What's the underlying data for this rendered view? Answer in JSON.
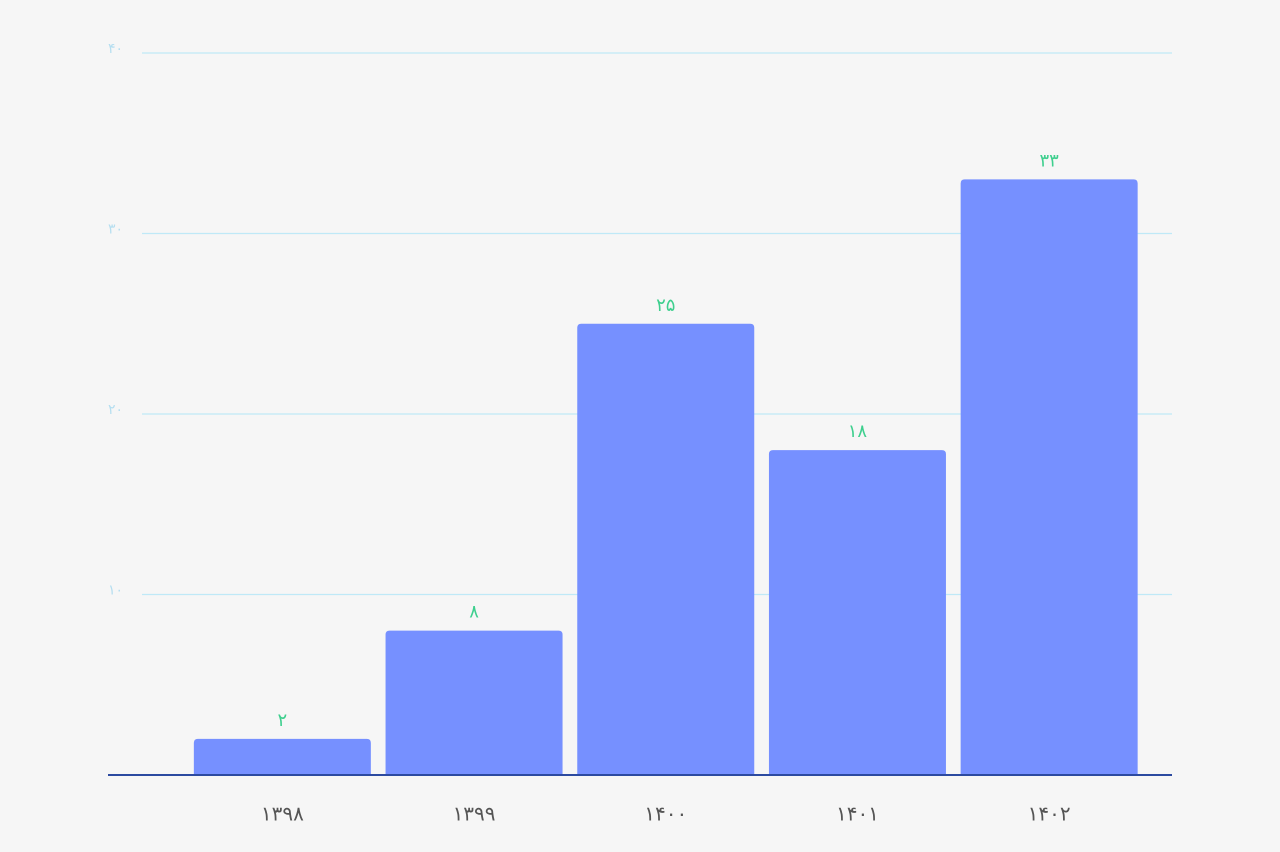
{
  "chart_data": {
    "type": "bar",
    "categories": [
      "۱۳۹۸",
      "۱۳۹۹",
      "۱۴۰۰",
      "۱۴۰۱",
      "۱۴۰۲"
    ],
    "values": [
      2,
      8,
      25,
      18,
      33
    ],
    "value_labels": [
      "۲",
      "۸",
      "۲۵",
      "۱۸",
      "۳۳"
    ],
    "color": "#7690ff",
    "ylim": [
      0,
      40
    ],
    "yticks": [
      {
        "value": 10,
        "label": "۱۰"
      },
      {
        "value": 20,
        "label": "۲۰"
      },
      {
        "value": 30,
        "label": "۳۰"
      },
      {
        "value": 40,
        "label": "۴۰"
      }
    ],
    "grid": true
  }
}
